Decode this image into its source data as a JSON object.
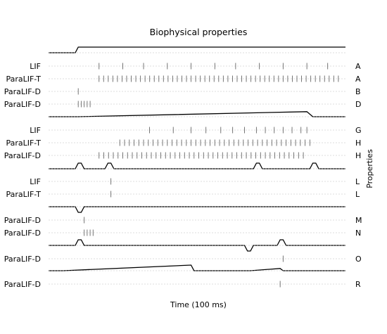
{
  "chart_data": {
    "type": "raster",
    "title": "Biophysical properties",
    "xlabel": "Time (100 ms)",
    "ylabel": "Properties",
    "xlim": [
      0,
      100
    ],
    "grid": "dotted horizontal guide line per raster row",
    "style": {
      "line_color": "#000000",
      "spike_color": "#666666",
      "grid_color": "#bbbbbb"
    },
    "panels": [
      {
        "stimulus": [
          [
            0,
            0
          ],
          [
            9,
            0
          ],
          [
            10,
            1
          ],
          [
            100,
            1
          ]
        ],
        "rows": [
          {
            "neuron": "LIF",
            "property": "A",
            "spikes": [
              17,
              25,
              32,
              40,
              48,
              56,
              63,
              71,
              79,
              87,
              94
            ]
          },
          {
            "neuron": "ParaLIF-T",
            "property": "A",
            "spikes": {
              "start": 17,
              "end": 99,
              "step": 1.55
            }
          },
          {
            "neuron": "ParaLIF-D",
            "property": "B",
            "spikes": [
              10
            ]
          },
          {
            "neuron": "ParaLIF-D",
            "property": "D",
            "spikes": [
              10,
              11,
              12,
              13,
              14
            ]
          }
        ]
      },
      {
        "stimulus": [
          [
            0,
            0
          ],
          [
            10,
            0
          ],
          [
            87,
            0.9
          ],
          [
            89,
            0
          ],
          [
            100,
            0
          ]
        ],
        "rows": [
          {
            "neuron": "LIF",
            "property": "G",
            "spikes": [
              34,
              42,
              48,
              53,
              58,
              62,
              66,
              70,
              73,
              76,
              79,
              82,
              85,
              87
            ]
          },
          {
            "neuron": "ParaLIF-T",
            "property": "H",
            "spikes": {
              "start": 24,
              "end": 88,
              "step": 1.6
            }
          },
          {
            "neuron": "ParaLIF-D",
            "property": "H",
            "spikes": {
              "start": 17,
              "end": 87,
              "step": 1.6
            }
          }
        ]
      },
      {
        "stimulus": [
          [
            0,
            0
          ],
          [
            9,
            0
          ],
          [
            10,
            1
          ],
          [
            11,
            1
          ],
          [
            12,
            0
          ],
          [
            19,
            0
          ],
          [
            20,
            1
          ],
          [
            21,
            1
          ],
          [
            22,
            0
          ],
          [
            69,
            0
          ],
          [
            70,
            1
          ],
          [
            71,
            1
          ],
          [
            72,
            0
          ],
          [
            88,
            0
          ],
          [
            89,
            1
          ],
          [
            90,
            1
          ],
          [
            91,
            0
          ],
          [
            100,
            0
          ]
        ],
        "rows": [
          {
            "neuron": "LIF",
            "property": "L",
            "spikes": [
              21
            ]
          },
          {
            "neuron": "ParaLIF-T",
            "property": "L",
            "spikes": [
              21
            ]
          }
        ]
      },
      {
        "stimulus": [
          [
            0,
            0
          ],
          [
            9,
            0
          ],
          [
            10,
            -1
          ],
          [
            11,
            -1
          ],
          [
            12,
            0
          ],
          [
            100,
            0
          ]
        ],
        "rows": [
          {
            "neuron": "ParaLIF-D",
            "property": "M",
            "spikes": [
              12
            ]
          },
          {
            "neuron": "ParaLIF-D",
            "property": "N",
            "spikes": [
              12,
              13,
              14,
              15
            ]
          }
        ]
      },
      {
        "stimulus": [
          [
            0,
            0
          ],
          [
            9,
            0
          ],
          [
            10,
            1
          ],
          [
            11,
            1
          ],
          [
            12,
            0
          ],
          [
            66,
            0
          ],
          [
            67,
            -1
          ],
          [
            68,
            -1
          ],
          [
            69,
            0
          ],
          [
            77,
            0
          ],
          [
            78,
            1
          ],
          [
            79,
            1
          ],
          [
            80,
            0
          ],
          [
            100,
            0
          ]
        ],
        "rows": [
          {
            "neuron": "ParaLIF-D",
            "property": "O",
            "spikes": [
              79
            ]
          }
        ]
      },
      {
        "stimulus": [
          [
            0,
            0
          ],
          [
            5,
            0
          ],
          [
            48,
            1
          ],
          [
            49,
            0
          ],
          [
            68,
            0
          ],
          [
            78,
            0.4
          ],
          [
            79,
            0
          ],
          [
            100,
            0
          ]
        ],
        "rows": [
          {
            "neuron": "ParaLIF-D",
            "property": "R",
            "spikes": [
              78
            ]
          }
        ]
      }
    ]
  }
}
